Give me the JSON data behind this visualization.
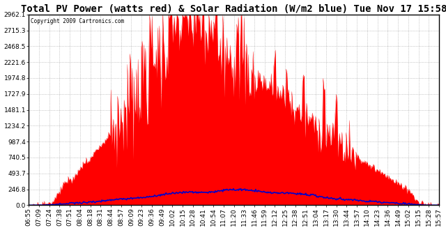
{
  "title": "Total PV Power (watts red) & Solar Radiation (W/m2 blue) Tue Nov 17 15:58",
  "copyright": "Copyright 2009 Cartronics.com",
  "background_color": "#ffffff",
  "plot_bg_color": "#ffffff",
  "grid_color": "#888888",
  "y_max": 2962.1,
  "y_min": 0.0,
  "y_ticks": [
    0.0,
    246.8,
    493.7,
    740.5,
    987.4,
    1234.2,
    1481.1,
    1727.9,
    1974.8,
    2221.6,
    2468.5,
    2715.3,
    2962.1
  ],
  "pv_color": "#ff0000",
  "solar_color": "#0000cc",
  "title_fontsize": 10,
  "tick_fontsize": 6.5,
  "time_labels": [
    "06:55",
    "07:09",
    "07:24",
    "07:38",
    "07:51",
    "08:04",
    "08:18",
    "08:31",
    "08:44",
    "08:57",
    "09:09",
    "09:23",
    "09:36",
    "09:49",
    "10:02",
    "10:15",
    "10:28",
    "10:41",
    "10:54",
    "11:07",
    "11:20",
    "11:33",
    "11:46",
    "11:59",
    "12:12",
    "12:25",
    "12:38",
    "12:51",
    "13:04",
    "13:17",
    "13:30",
    "13:44",
    "13:57",
    "14:10",
    "14:23",
    "14:36",
    "14:49",
    "15:02",
    "15:15",
    "15:28",
    "15:57"
  ]
}
